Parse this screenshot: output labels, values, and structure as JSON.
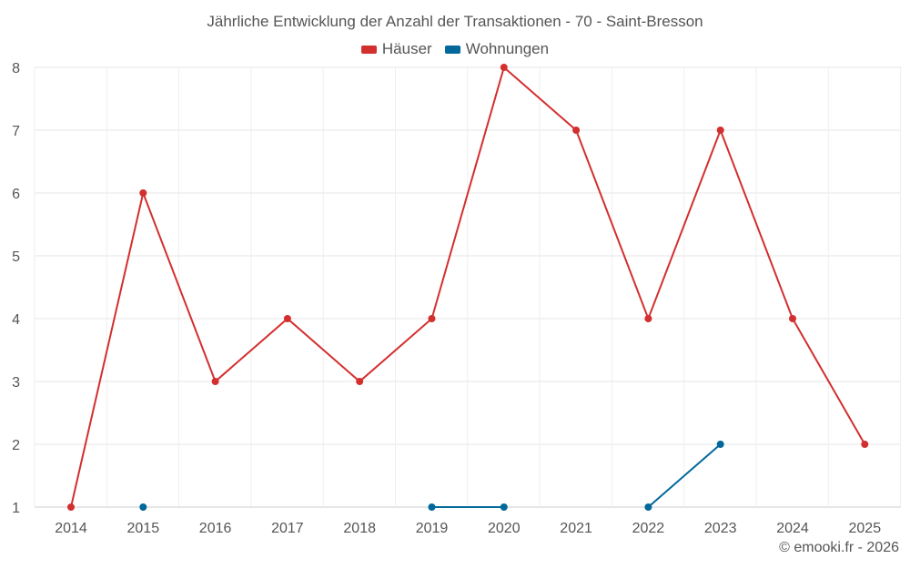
{
  "chart_data": {
    "type": "line",
    "title": "Jährliche Entwicklung der Anzahl der Transaktionen - 70 - Saint-Bresson",
    "x": [
      "2014",
      "2015",
      "2016",
      "2017",
      "2018",
      "2019",
      "2020",
      "2021",
      "2022",
      "2023",
      "2024",
      "2025"
    ],
    "yticks": [
      1,
      2,
      3,
      4,
      5,
      6,
      7,
      8
    ],
    "ylim": [
      1,
      8
    ],
    "grid": true,
    "legend_position": "top-center",
    "series": [
      {
        "name": "Häuser",
        "color": "#d32f2f",
        "values": [
          1,
          6,
          3,
          4,
          3,
          4,
          8,
          7,
          4,
          7,
          4,
          2
        ]
      },
      {
        "name": "Wohnungen",
        "color": "#01689b",
        "values": [
          null,
          1,
          null,
          null,
          null,
          1,
          1,
          null,
          1,
          2,
          null,
          null
        ]
      }
    ]
  },
  "credit": "© emooki.fr - 2026"
}
